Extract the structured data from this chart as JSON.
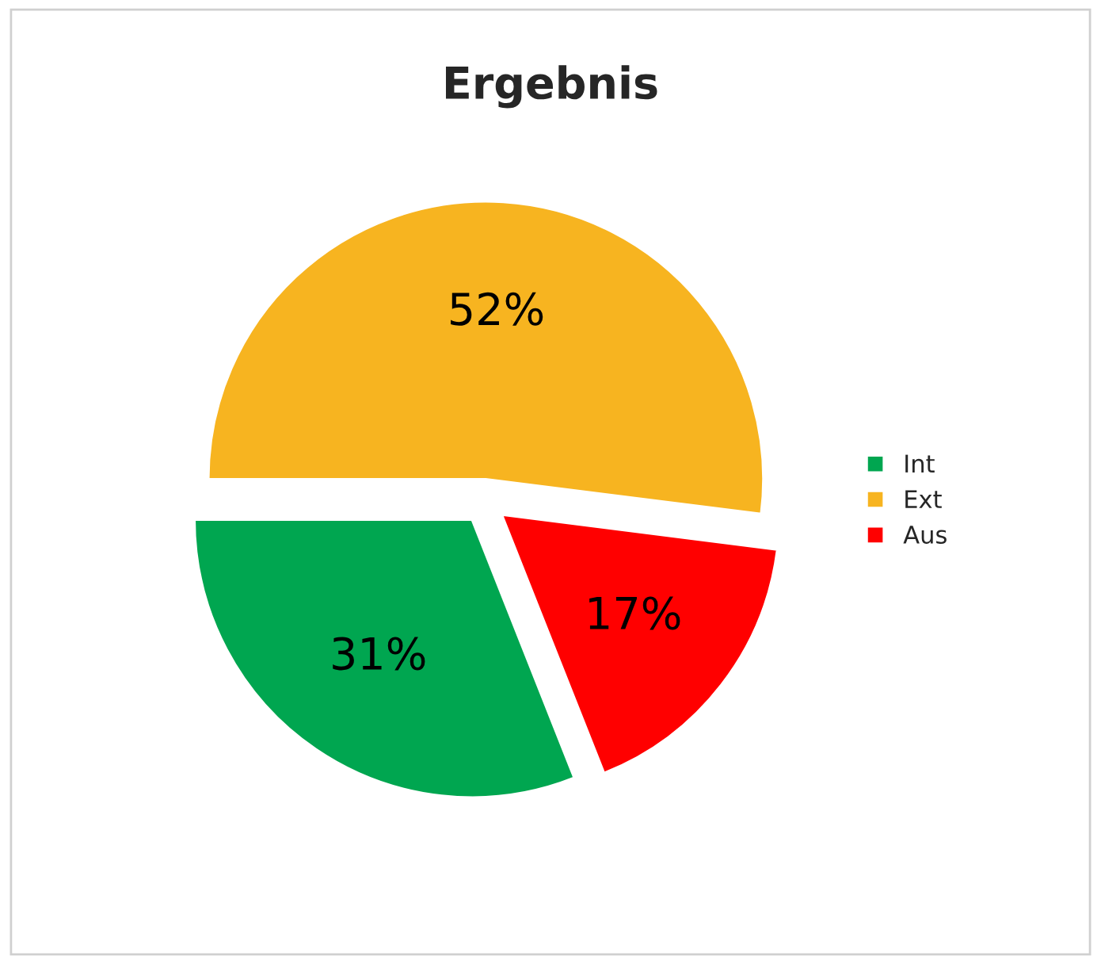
{
  "chart_data": {
    "type": "pie",
    "title": "Ergebnis",
    "categories": [
      "Int",
      "Ext",
      "Aus"
    ],
    "values": [
      31,
      52,
      17
    ],
    "colors": [
      "#00a650",
      "#f7b420",
      "#ff0000"
    ],
    "value_labels": [
      "31%",
      "52%",
      "17%"
    ],
    "legend": "right"
  }
}
